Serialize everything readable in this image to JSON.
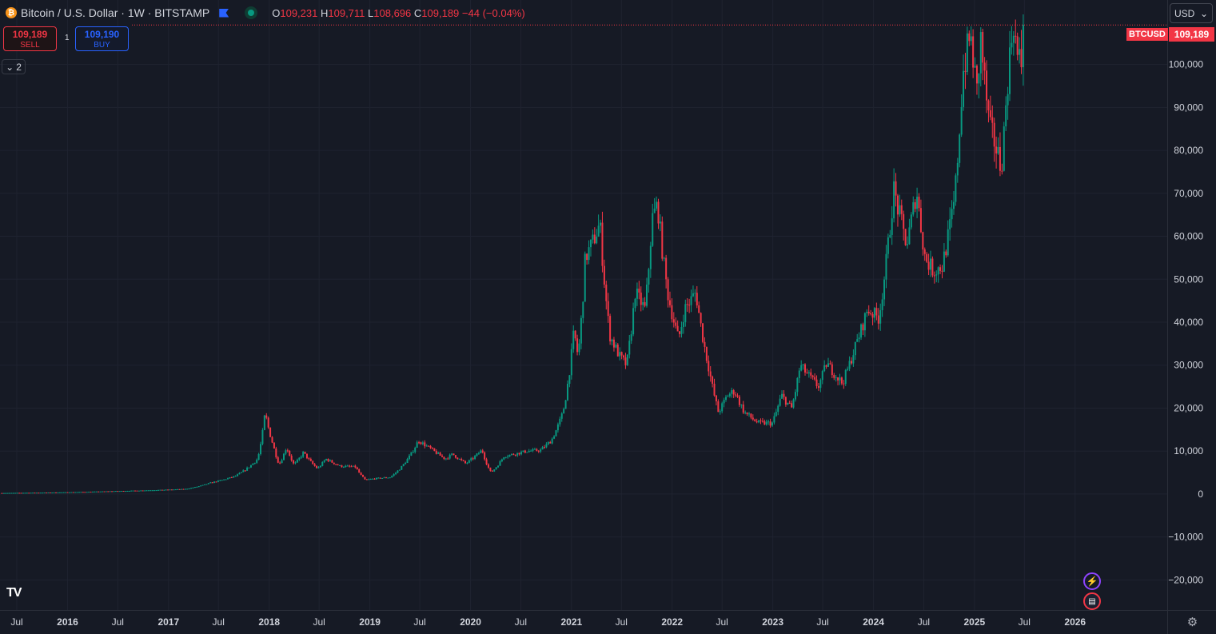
{
  "header": {
    "title": "Bitcoin / U.S. Dollar · 1W · BITSTAMP",
    "coin_symbol": "₿",
    "ohlc": {
      "o_label": "O",
      "o": "109,231",
      "h_label": "H",
      "h": "109,711",
      "l_label": "L",
      "l": "108,696",
      "c_label": "C",
      "c": "109,189",
      "change": "−44 (−0.04%)"
    }
  },
  "trade": {
    "sell_price": "109,189",
    "sell_label": "SELL",
    "buy_price": "109,190",
    "buy_label": "BUY",
    "spread": "1"
  },
  "indicators_toggle": {
    "count": "2"
  },
  "currency": "USD",
  "last_price": {
    "symbol": "BTCUSD",
    "value": "109,189"
  },
  "brand": "TV",
  "colors": {
    "up": "#089981",
    "down": "#f23645",
    "background": "#161a25",
    "grid": "#1f2330",
    "axis_text": "#d1d4dc"
  },
  "icons": {
    "events": "lightning-icon",
    "economic": "us-flag-icon",
    "settings": "gear-icon"
  },
  "chart_data": {
    "type": "candlestick",
    "title": "Bitcoin / U.S. Dollar · 1W · BITSTAMP",
    "ylim": [
      -27000,
      115000
    ],
    "y_ticks": [
      -20000,
      -10000,
      0,
      10000,
      20000,
      30000,
      40000,
      50000,
      60000,
      70000,
      80000,
      90000,
      100000
    ],
    "y_tick_labels": [
      "−20,000",
      "−10,000",
      "0",
      "10,000",
      "20,000",
      "30,000",
      "40,000",
      "50,000",
      "60,000",
      "70,000",
      "80,000",
      "90,000",
      "100,000"
    ],
    "x_range": [
      "2015-05-01",
      "2026-12-01"
    ],
    "x_ticks": [
      {
        "date": "2015-07-01",
        "label": "Jul"
      },
      {
        "date": "2016-01-01",
        "label": "2016"
      },
      {
        "date": "2016-07-01",
        "label": "Jul"
      },
      {
        "date": "2017-01-01",
        "label": "2017"
      },
      {
        "date": "2017-07-01",
        "label": "Jul"
      },
      {
        "date": "2018-01-01",
        "label": "2018"
      },
      {
        "date": "2018-07-01",
        "label": "Jul"
      },
      {
        "date": "2019-01-01",
        "label": "2019"
      },
      {
        "date": "2019-07-01",
        "label": "Jul"
      },
      {
        "date": "2020-01-01",
        "label": "2020"
      },
      {
        "date": "2020-07-01",
        "label": "Jul"
      },
      {
        "date": "2021-01-01",
        "label": "2021"
      },
      {
        "date": "2021-07-01",
        "label": "Jul"
      },
      {
        "date": "2022-01-01",
        "label": "2022"
      },
      {
        "date": "2022-07-01",
        "label": "Jul"
      },
      {
        "date": "2023-01-01",
        "label": "2023"
      },
      {
        "date": "2023-07-01",
        "label": "Jul"
      },
      {
        "date": "2024-01-01",
        "label": "2024"
      },
      {
        "date": "2024-07-01",
        "label": "Jul"
      },
      {
        "date": "2025-01-01",
        "label": "2025"
      },
      {
        "date": "2025-07-01",
        "label": "Jul"
      },
      {
        "date": "2026-01-01",
        "label": "2026"
      }
    ],
    "last_close": 109189,
    "price_path": [
      [
        "2015-05-01",
        240
      ],
      [
        "2015-11-01",
        350
      ],
      [
        "2016-06-01",
        650
      ],
      [
        "2016-12-01",
        950
      ],
      [
        "2017-03-01",
        1150
      ],
      [
        "2017-06-01",
        2600
      ],
      [
        "2017-09-01",
        4200
      ],
      [
        "2017-11-20",
        8200
      ],
      [
        "2017-12-17",
        19000
      ],
      [
        "2018-01-15",
        11500
      ],
      [
        "2018-02-06",
        6900
      ],
      [
        "2018-03-05",
        11000
      ],
      [
        "2018-04-01",
        6800
      ],
      [
        "2018-05-05",
        9700
      ],
      [
        "2018-06-25",
        5900
      ],
      [
        "2018-07-25",
        8200
      ],
      [
        "2018-09-15",
        6500
      ],
      [
        "2018-11-10",
        6300
      ],
      [
        "2018-12-15",
        3300
      ],
      [
        "2019-01-20",
        3600
      ],
      [
        "2019-03-15",
        3900
      ],
      [
        "2019-05-15",
        7900
      ],
      [
        "2019-06-26",
        12500
      ],
      [
        "2019-08-15",
        10300
      ],
      [
        "2019-10-01",
        8200
      ],
      [
        "2019-10-28",
        9300
      ],
      [
        "2019-12-15",
        7100
      ],
      [
        "2020-02-12",
        10300
      ],
      [
        "2020-03-15",
        5000
      ],
      [
        "2020-05-01",
        8800
      ],
      [
        "2020-07-25",
        10000
      ],
      [
        "2020-09-10",
        10200
      ],
      [
        "2020-10-20",
        12500
      ],
      [
        "2020-12-01",
        19000
      ],
      [
        "2021-01-10",
        38000
      ],
      [
        "2021-01-25",
        32000
      ],
      [
        "2021-02-20",
        55000
      ],
      [
        "2021-03-15",
        58000
      ],
      [
        "2021-04-14",
        63000
      ],
      [
        "2021-05-20",
        37000
      ],
      [
        "2021-06-25",
        32000
      ],
      [
        "2021-07-20",
        30000
      ],
      [
        "2021-08-20",
        47000
      ],
      [
        "2021-09-25",
        43000
      ],
      [
        "2021-10-20",
        64000
      ],
      [
        "2021-11-09",
        67500
      ],
      [
        "2021-12-15",
        47000
      ],
      [
        "2022-01-24",
        36000
      ],
      [
        "2022-02-15",
        43000
      ],
      [
        "2022-03-28",
        47000
      ],
      [
        "2022-05-15",
        29000
      ],
      [
        "2022-06-18",
        19000
      ],
      [
        "2022-07-20",
        23000
      ],
      [
        "2022-08-15",
        24000
      ],
      [
        "2022-09-20",
        19000
      ],
      [
        "2022-11-10",
        16500
      ],
      [
        "2022-12-30",
        16500
      ],
      [
        "2023-02-01",
        23000
      ],
      [
        "2023-03-10",
        20000
      ],
      [
        "2023-04-10",
        30000
      ],
      [
        "2023-06-15",
        25000
      ],
      [
        "2023-07-15",
        30500
      ],
      [
        "2023-09-10",
        25800
      ],
      [
        "2023-10-25",
        34000
      ],
      [
        "2023-12-10",
        43000
      ],
      [
        "2024-01-20",
        41000
      ],
      [
        "2024-03-14",
        71000
      ],
      [
        "2024-05-01",
        58000
      ],
      [
        "2024-06-05",
        71000
      ],
      [
        "2024-07-06",
        55000
      ],
      [
        "2024-08-05",
        52000
      ],
      [
        "2024-09-06",
        53000
      ],
      [
        "2024-10-20",
        68000
      ],
      [
        "2024-11-20",
        98000
      ],
      [
        "2024-12-17",
        107000
      ],
      [
        "2025-01-13",
        92000
      ],
      [
        "2025-01-21",
        108000
      ],
      [
        "2025-02-25",
        85000
      ],
      [
        "2025-03-15",
        82000
      ],
      [
        "2025-04-08",
        76000
      ],
      [
        "2025-05-01",
        96000
      ],
      [
        "2025-05-22",
        111000
      ],
      [
        "2025-06-05",
        101500
      ],
      [
        "2025-06-22",
        100000
      ],
      [
        "2025-07-01",
        109189
      ]
    ]
  }
}
